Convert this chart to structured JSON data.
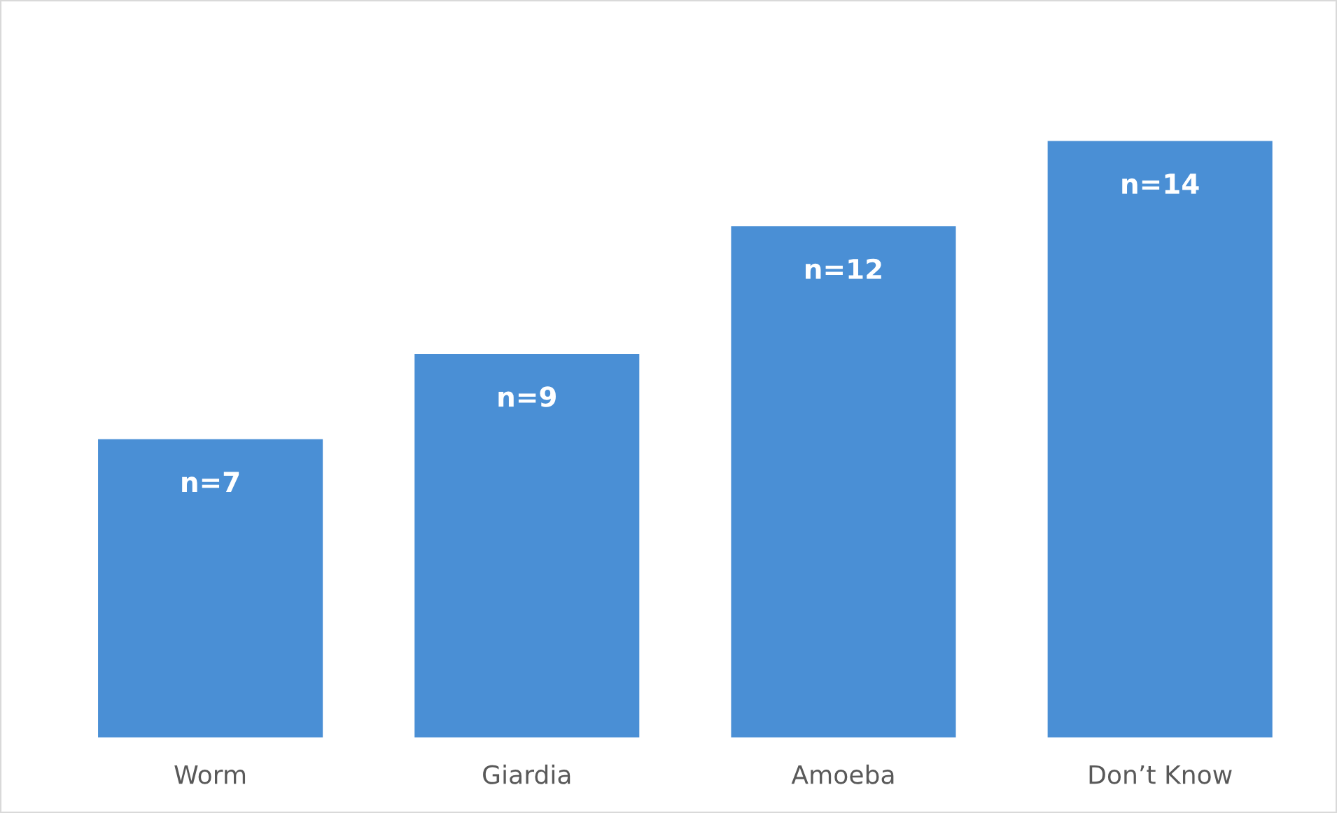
{
  "chart_data": {
    "type": "bar",
    "categories": [
      "Worm",
      "Giardia",
      "Amoeba",
      "Don’t Know"
    ],
    "values": [
      7,
      9,
      12,
      14
    ],
    "value_labels": [
      "n=7",
      "n=9",
      "n=12",
      "n=14"
    ],
    "color": "#4a8fd5",
    "grid": false,
    "legend": false
  }
}
